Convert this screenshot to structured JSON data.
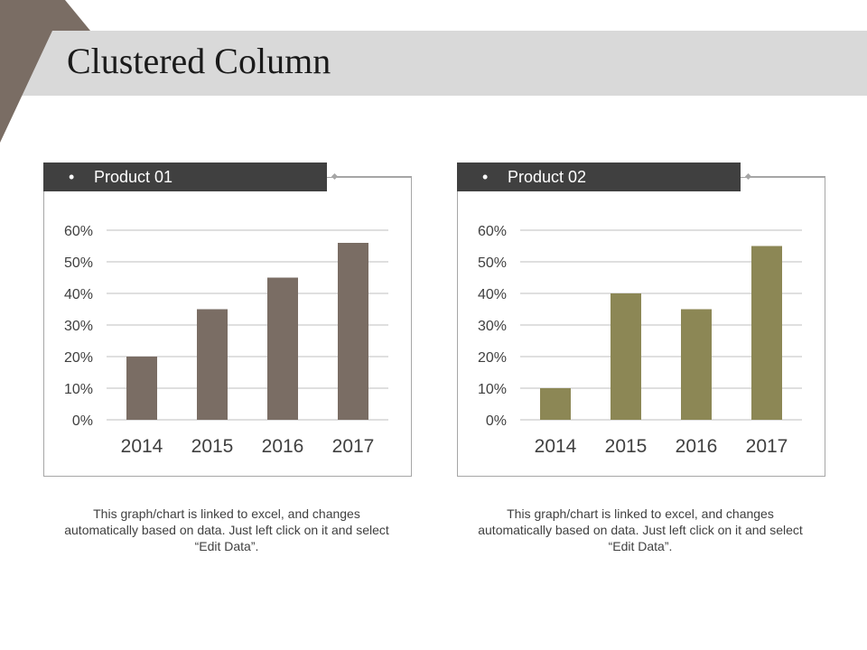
{
  "page": {
    "title": "Clustered Column",
    "accent_color": "#7a6d64",
    "band_color": "#d9d9d9"
  },
  "panels": [
    {
      "bullet": "•",
      "label": "Product 01",
      "caption": "This graph/chart is linked to excel, and changes automatically based on data. Just left click on it and select “Edit Data”."
    },
    {
      "bullet": "•",
      "label": "Product 02",
      "caption": "This graph/chart is linked to excel, and changes automatically based on data. Just left click on it and select “Edit Data”."
    }
  ],
  "chart_data": [
    {
      "type": "bar",
      "title": "Product 01",
      "categories": [
        "2014",
        "2015",
        "2016",
        "2017"
      ],
      "values": [
        20,
        35,
        45,
        56
      ],
      "ylim": [
        0,
        60
      ],
      "yticks": [
        0,
        10,
        20,
        30,
        40,
        50,
        60
      ],
      "ytick_labels": [
        "0%",
        "10%",
        "20%",
        "30%",
        "40%",
        "50%",
        "60%"
      ],
      "color": "#7a6d64",
      "grid": true
    },
    {
      "type": "bar",
      "title": "Product 02",
      "categories": [
        "2014",
        "2015",
        "2016",
        "2017"
      ],
      "values": [
        10,
        40,
        35,
        55
      ],
      "ylim": [
        0,
        60
      ],
      "yticks": [
        0,
        10,
        20,
        30,
        40,
        50,
        60
      ],
      "ytick_labels": [
        "0%",
        "10%",
        "20%",
        "30%",
        "40%",
        "50%",
        "60%"
      ],
      "color": "#8c8755",
      "grid": true
    }
  ]
}
